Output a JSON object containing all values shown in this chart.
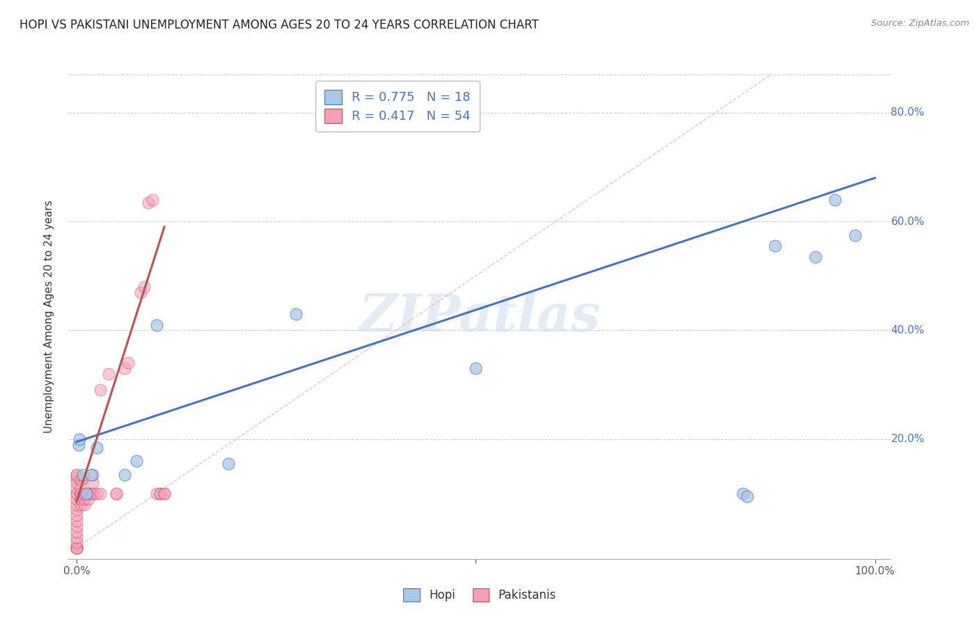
{
  "title": "HOPI VS PAKISTANI UNEMPLOYMENT AMONG AGES 20 TO 24 YEARS CORRELATION CHART",
  "source": "Source: ZipAtlas.com",
  "ylabel": "Unemployment Among Ages 20 to 24 years",
  "xlim": [
    -0.01,
    1.02
  ],
  "ylim": [
    -0.02,
    0.87
  ],
  "xticks": [
    0.0,
    0.5,
    1.0
  ],
  "xticklabels": [
    "0.0%",
    "",
    "100.0%"
  ],
  "yticks": [
    0.0,
    0.2,
    0.4,
    0.6,
    0.8
  ],
  "yticklabels_right": [
    "",
    "20.0%",
    "40.0%",
    "60.0%",
    "80.0%"
  ],
  "hopi_color": "#a8c8e8",
  "pak_color": "#f4a0b8",
  "trend_hopi_color": "#4472c4",
  "trend_pak_color": "#c0504d",
  "watermark": "ZIPatlas",
  "legend_label_hopi": "Hopi",
  "legend_label_pak": "Pakistanis",
  "hopi_x": [
    0.003,
    0.004,
    0.008,
    0.012,
    0.018,
    0.025,
    0.06,
    0.075,
    0.1,
    0.19,
    0.275,
    0.5,
    0.835,
    0.84,
    0.875,
    0.925,
    0.95,
    0.975
  ],
  "hopi_y": [
    0.19,
    0.2,
    0.135,
    0.1,
    0.135,
    0.185,
    0.135,
    0.16,
    0.41,
    0.155,
    0.43,
    0.33,
    0.1,
    0.095,
    0.555,
    0.535,
    0.64,
    0.575
  ],
  "pak_x": [
    0.0,
    0.0,
    0.0,
    0.0,
    0.0,
    0.0,
    0.0,
    0.0,
    0.0,
    0.0,
    0.0,
    0.0,
    0.0,
    0.0,
    0.0,
    0.0,
    0.0,
    0.0,
    0.0,
    0.0,
    0.005,
    0.005,
    0.005,
    0.005,
    0.005,
    0.005,
    0.01,
    0.01,
    0.01,
    0.01,
    0.015,
    0.015,
    0.02,
    0.02,
    0.02,
    0.02,
    0.025,
    0.03,
    0.03,
    0.04,
    0.05,
    0.05,
    0.06,
    0.065,
    0.08,
    0.085,
    0.09,
    0.095,
    0.1,
    0.105,
    0.105,
    0.11,
    0.11
  ],
  "pak_y": [
    0.0,
    0.0,
    0.0,
    0.0,
    0.01,
    0.02,
    0.03,
    0.04,
    0.05,
    0.06,
    0.07,
    0.08,
    0.09,
    0.1,
    0.1,
    0.11,
    0.12,
    0.13,
    0.135,
    0.135,
    0.08,
    0.09,
    0.1,
    0.1,
    0.11,
    0.125,
    0.08,
    0.09,
    0.1,
    0.13,
    0.09,
    0.1,
    0.1,
    0.1,
    0.12,
    0.135,
    0.1,
    0.1,
    0.29,
    0.32,
    0.1,
    0.1,
    0.33,
    0.34,
    0.47,
    0.48,
    0.635,
    0.64,
    0.1,
    0.1,
    0.1,
    0.1,
    0.1
  ],
  "blue_line_x0": 0.0,
  "blue_line_y0": 0.195,
  "blue_line_x1": 1.0,
  "blue_line_y1": 0.68,
  "pink_line_x0": 0.0,
  "pink_line_y0": 0.085,
  "pink_line_x1": 0.11,
  "pink_line_y1": 0.59
}
